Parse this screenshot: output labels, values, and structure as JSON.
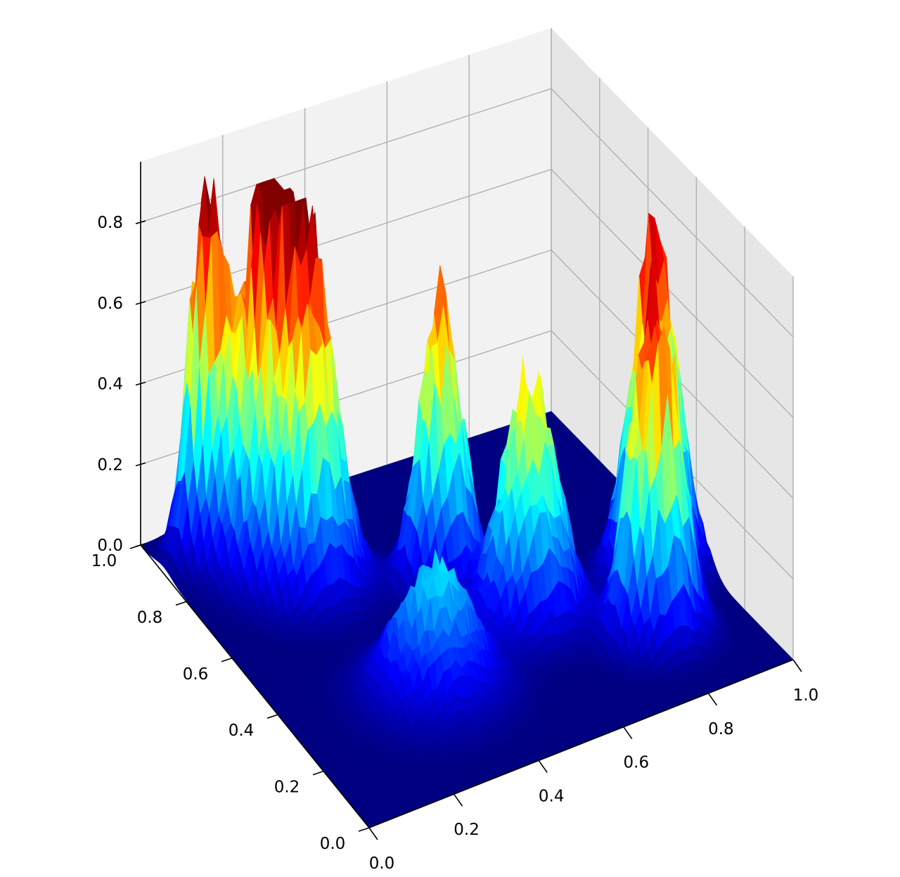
{
  "chart_data": {
    "type": "surface3d",
    "title": "",
    "xlabel": "",
    "ylabel": "",
    "zlabel": "",
    "colormap": "jet",
    "grid": true,
    "xlim": [
      0.0,
      1.0
    ],
    "ylim": [
      0.0,
      1.0
    ],
    "zlim": [
      0.0,
      0.95
    ],
    "x_ticks": [
      "0.0",
      "0.2",
      "0.4",
      "0.6",
      "0.8",
      "1.0"
    ],
    "y_ticks": [
      "0.0",
      "0.2",
      "0.4",
      "0.6",
      "0.8",
      "1.0"
    ],
    "z_ticks": [
      "0.0",
      "0.2",
      "0.4",
      "0.6",
      "0.8"
    ],
    "x_tick_values": [
      0.0,
      0.2,
      0.4,
      0.6,
      0.8,
      1.0
    ],
    "y_tick_values": [
      0.0,
      0.2,
      0.4,
      0.6,
      0.8,
      1.0
    ],
    "z_tick_values": [
      0.0,
      0.2,
      0.4,
      0.6,
      0.8
    ],
    "peaks": [
      {
        "x": 0.1,
        "y": 0.9,
        "height": 0.9,
        "width": 0.035
      },
      {
        "x": 0.2,
        "y": 0.82,
        "height": 0.85,
        "width": 0.06
      },
      {
        "x": 0.25,
        "y": 0.72,
        "height": 0.8,
        "width": 0.06
      },
      {
        "x": 0.5,
        "y": 0.6,
        "height": 0.74,
        "width": 0.045
      },
      {
        "x": 0.6,
        "y": 0.4,
        "height": 0.62,
        "width": 0.06
      },
      {
        "x": 0.32,
        "y": 0.3,
        "height": 0.32,
        "width": 0.08
      },
      {
        "x": 0.8,
        "y": 0.22,
        "height": 0.93,
        "width": 0.05
      },
      {
        "x": 0.9,
        "y": 0.4,
        "height": 0.87,
        "width": 0.05
      }
    ]
  }
}
